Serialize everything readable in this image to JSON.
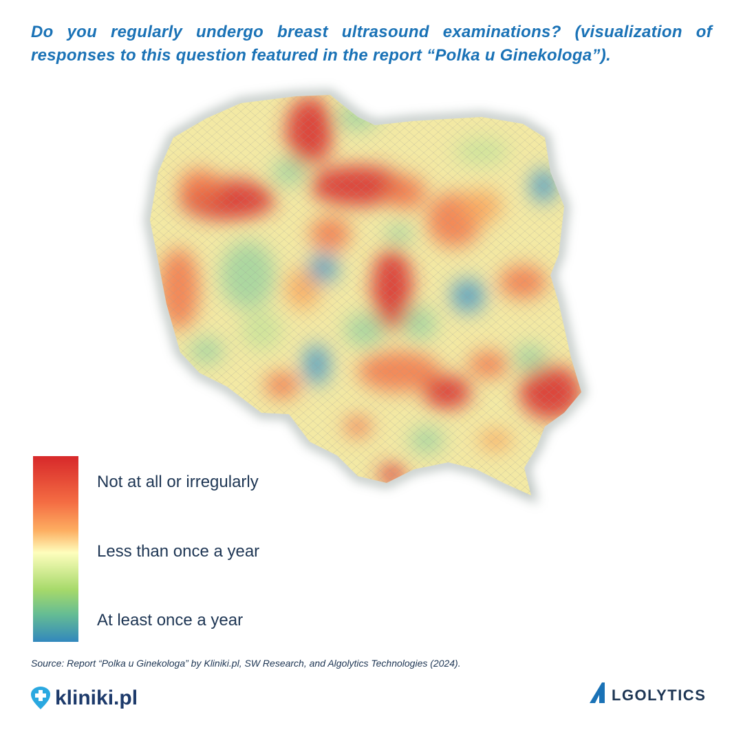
{
  "header": {
    "title": "Do you regularly undergo breast ultrasound examinations? (visualization of responses to this question featured in the report “Polka u Ginekologa”)."
  },
  "legend": {
    "items": [
      "Not at all or irregularly",
      "Less than once a year",
      "At least once a year"
    ]
  },
  "footer": {
    "source": "Source: Report “Polka u Ginekologa” by Kliniki.pl, SW Research, and Algolytics Technologies (2024).",
    "logo_left": "kliniki.pl",
    "logo_right": "LGOLYTICS"
  }
}
